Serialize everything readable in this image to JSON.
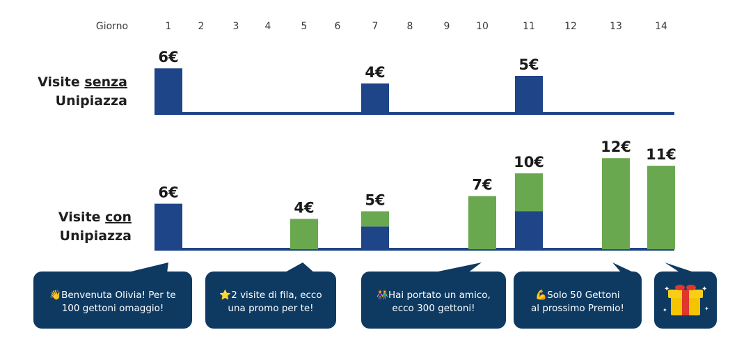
{
  "header": {
    "label": "Giorno"
  },
  "colors": {
    "base": "#1f4589",
    "bonus": "#6aa84f",
    "bubble": "#0e3a62",
    "text": "#1e1e1e"
  },
  "chart_data": [
    {
      "type": "bar",
      "row_label": {
        "prefix": "Visite ",
        "keyword": "senza",
        "line2": "Unipiazza"
      },
      "x": [
        1,
        2,
        3,
        4,
        5,
        6,
        7,
        8,
        9,
        10,
        11,
        12,
        13,
        14
      ],
      "series": [
        {
          "values": [
            6,
            0,
            0,
            0,
            0,
            0,
            4,
            0,
            0,
            0,
            5,
            0,
            0,
            0
          ]
        }
      ],
      "labels": {
        "1": "6€",
        "7": "4€",
        "11": "5€"
      }
    },
    {
      "type": "bar",
      "stacked": true,
      "row_label": {
        "prefix": "Visite ",
        "keyword": "con",
        "line2": "Unipiazza"
      },
      "x": [
        1,
        2,
        3,
        4,
        5,
        6,
        7,
        8,
        9,
        10,
        11,
        12,
        13,
        14
      ],
      "series": [
        {
          "values": [
            6,
            0,
            0,
            0,
            0,
            0,
            3,
            0,
            0,
            0,
            5,
            0,
            0,
            0
          ]
        },
        {
          "values": [
            0,
            0,
            0,
            0,
            4,
            0,
            2,
            0,
            0,
            7,
            5,
            0,
            12,
            11
          ]
        }
      ],
      "labels": {
        "1": "6€",
        "5": "4€",
        "7": "5€",
        "10": "7€",
        "11": "10€",
        "13": "12€",
        "14": "11€"
      }
    }
  ],
  "bubbles": [
    {
      "emoji": "👋",
      "line1": "Benvenuta Olivia! Per te",
      "line2": "100 gettoni omaggio!"
    },
    {
      "emoji": "⭐",
      "line1": "2 visite di fila, ecco",
      "line2": "una promo per te!"
    },
    {
      "emoji": "👫",
      "line1": "Hai portato un amico,",
      "line2": "ecco 300 gettoni!"
    },
    {
      "emoji": "💪",
      "line1": "Solo 50 Gettoni",
      "line2": "al prossimo Premio!"
    },
    {
      "icon": "gift-icon"
    }
  ]
}
